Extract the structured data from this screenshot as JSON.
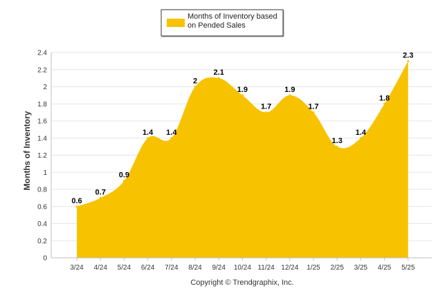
{
  "chart_data": {
    "type": "area",
    "title": "",
    "xlabel": "",
    "ylabel": "Months of Inventory",
    "categories": [
      "3/24",
      "4/24",
      "5/24",
      "6/24",
      "7/24",
      "8/24",
      "9/24",
      "10/24",
      "11/24",
      "12/24",
      "1/25",
      "2/25",
      "3/25",
      "4/25",
      "5/25"
    ],
    "series": [
      {
        "name": "Months of Inventory based on Pended Sales",
        "values": [
          0.6,
          0.7,
          0.9,
          1.4,
          1.4,
          2,
          2.1,
          1.9,
          1.7,
          1.9,
          1.7,
          1.3,
          1.4,
          1.8,
          2.3
        ],
        "labels": [
          "0.6",
          "0.7",
          "0.9",
          "1.4",
          "1.4",
          "2",
          "2.1",
          "1.9",
          "1.7",
          "1.9",
          "1.7",
          "1.3",
          "1.4",
          "1.8",
          "2.3"
        ],
        "color": "#F7C200"
      }
    ],
    "ylim": [
      0,
      2.4
    ],
    "yticks": [
      "0",
      "0.2",
      "0.4",
      "0.6",
      "0.8",
      "1",
      "1.2",
      "1.4",
      "1.6",
      "1.8",
      "2",
      "2.2",
      "2.4"
    ],
    "grid": true,
    "legend_position": "top-center"
  },
  "legend": {
    "line1": "Months of Inventory based",
    "line2": "on Pended Sales"
  },
  "footer": "Copyright © Trendgraphix, Inc."
}
